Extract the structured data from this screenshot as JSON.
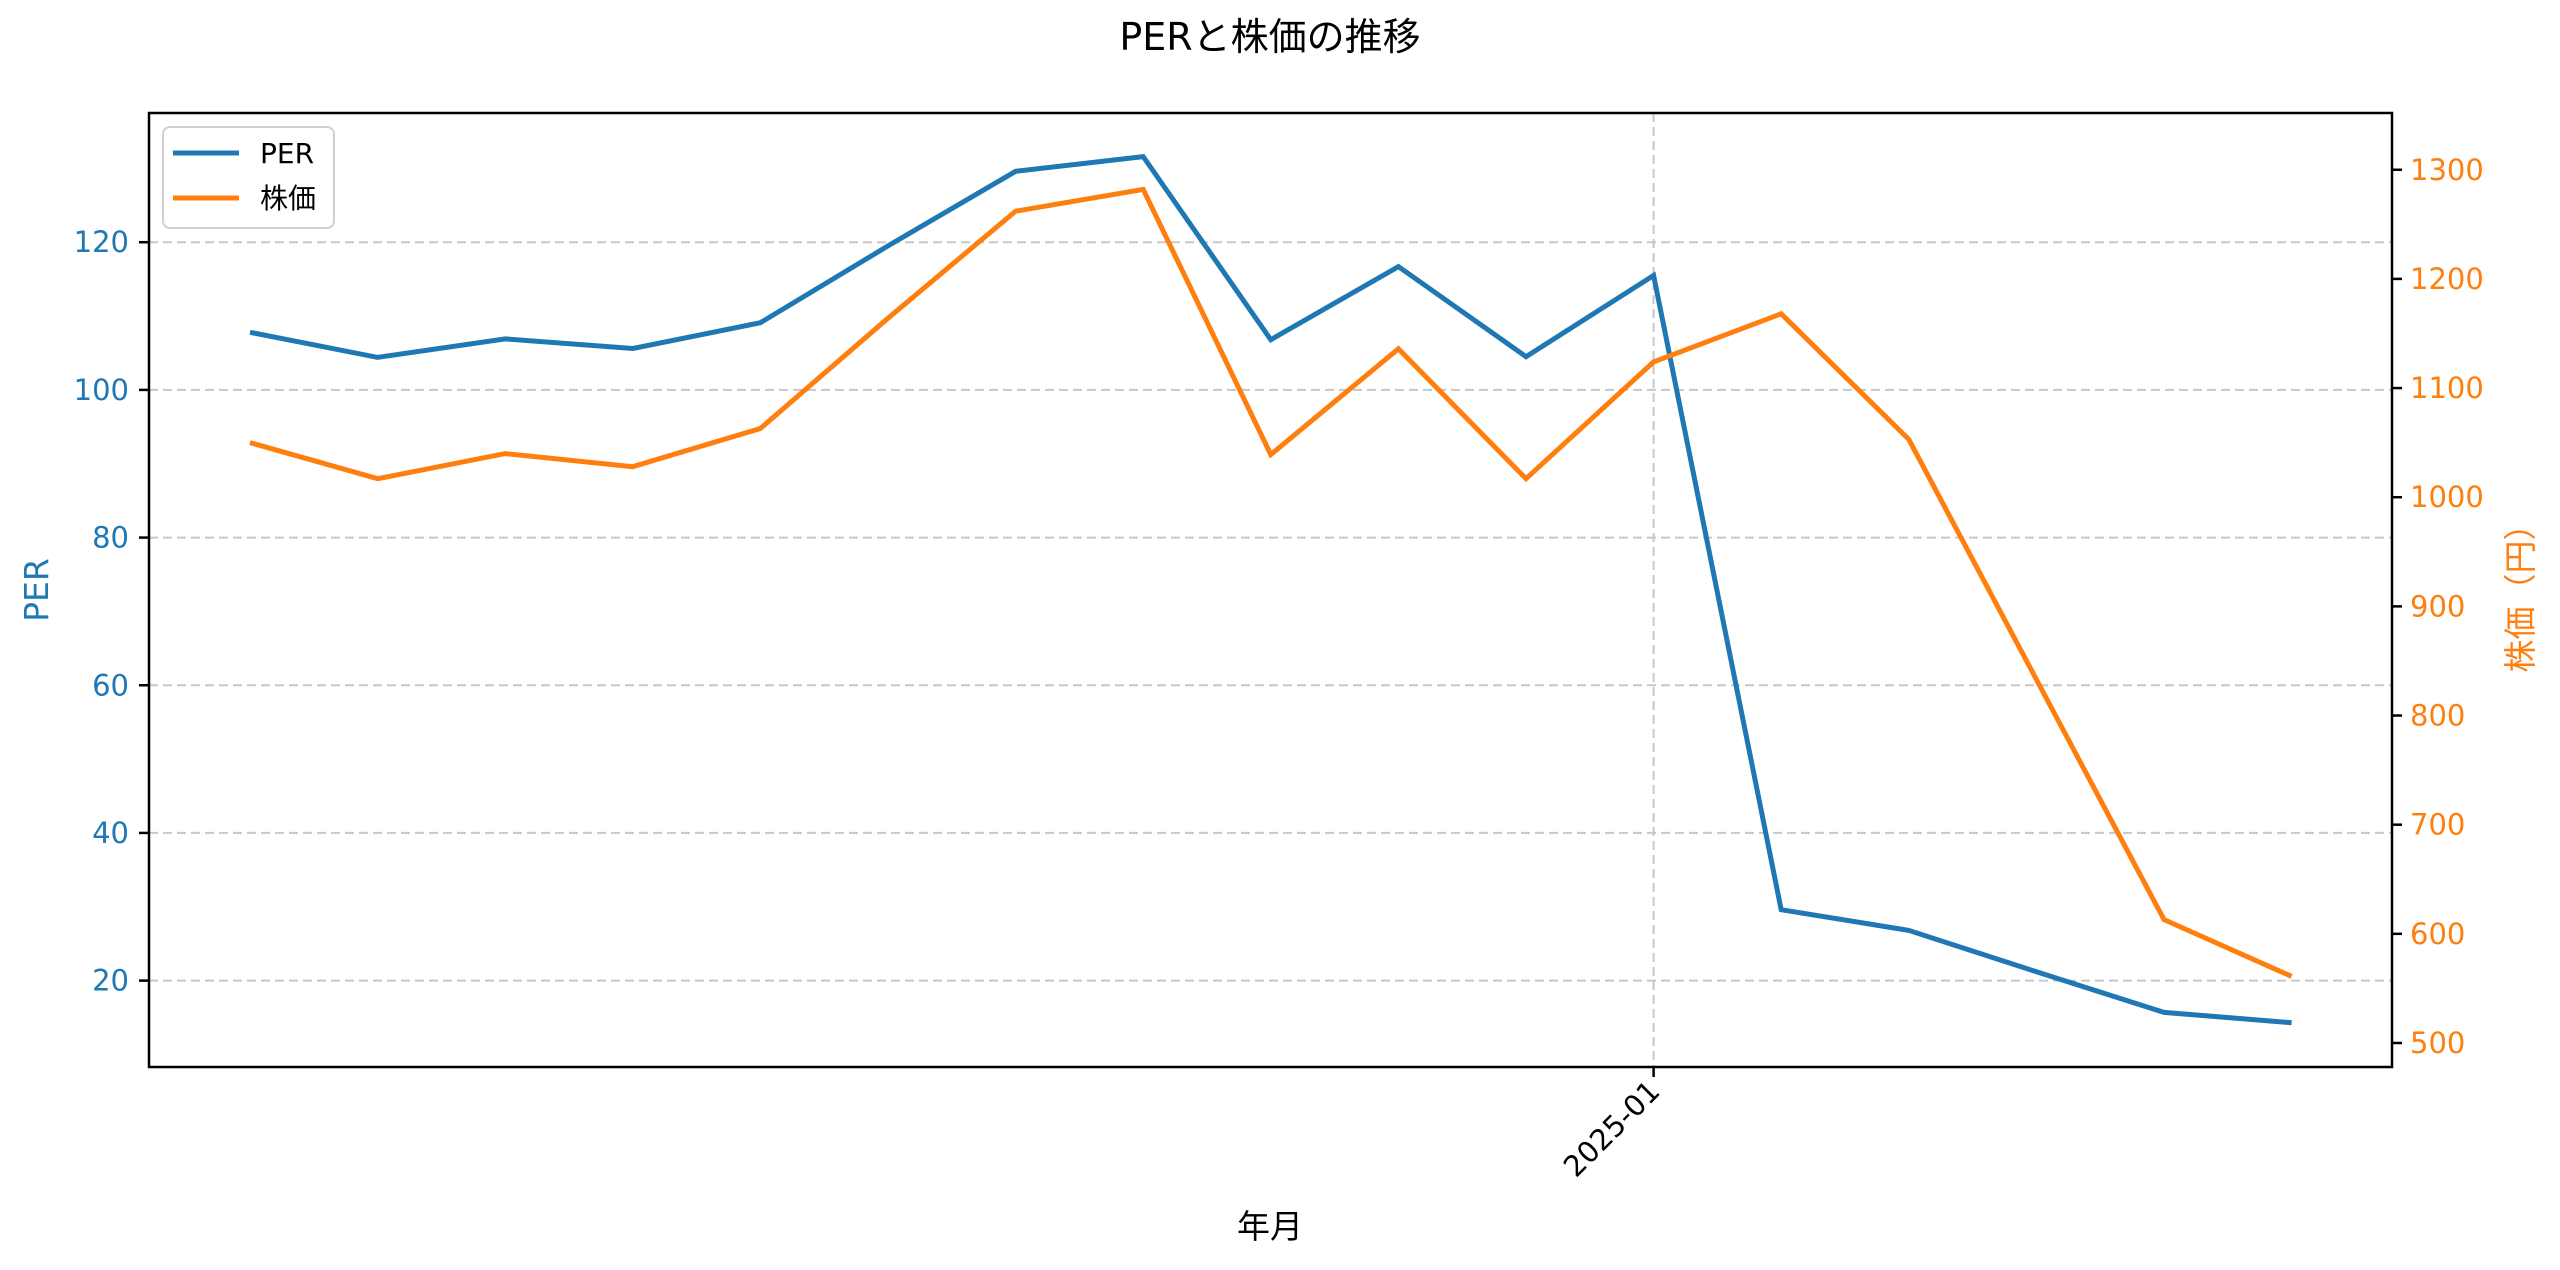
{
  "chart_data": {
    "type": "line",
    "title": "PERと株価の推移",
    "xlabel": "年月",
    "ylabel_left": "PER",
    "ylabel_right": "株価（円）",
    "x": [
      "2024-02",
      "2024-03",
      "2024-04",
      "2024-05",
      "2024-06",
      "2024-07",
      "2024-08",
      "2024-09",
      "2024-10",
      "2024-11",
      "2024-12",
      "2025-01",
      "2025-02",
      "2025-03",
      "2025-04",
      "2025-05",
      "2025-06"
    ],
    "x_tick_labels": [
      {
        "index": 11,
        "label": "2025-01"
      }
    ],
    "series": [
      {
        "name": "PER",
        "axis": "left",
        "color": "#1f77b4",
        "values": [
          107.8,
          104.4,
          106.9,
          105.6,
          109.1,
          119.5,
          129.6,
          131.6,
          106.8,
          116.7,
          104.5,
          115.5,
          29.6,
          26.8,
          21.2,
          15.7,
          14.3
        ]
      },
      {
        "name": "株価",
        "axis": "right",
        "color": "#ff7f0e",
        "values": [
          1050,
          1017,
          1040,
          1028,
          1063,
          1164,
          1262,
          1282,
          1039,
          1136,
          1017,
          1124,
          1168,
          1053,
          833,
          613,
          561
        ]
      }
    ],
    "y_left": {
      "ticks": [
        20,
        40,
        60,
        80,
        100,
        120
      ],
      "range": [
        8.3,
        137.5
      ],
      "color": "#1f77b4"
    },
    "y_right": {
      "ticks": [
        500,
        600,
        700,
        800,
        900,
        1000,
        1100,
        1200,
        1300
      ],
      "range": [
        478,
        1352
      ],
      "color": "#ff7f0e"
    },
    "grid": {
      "on": true,
      "style": "dashed",
      "color": "#c8c8c8"
    },
    "legend": {
      "position": "upper left",
      "entries": [
        "PER",
        "株価"
      ]
    }
  }
}
